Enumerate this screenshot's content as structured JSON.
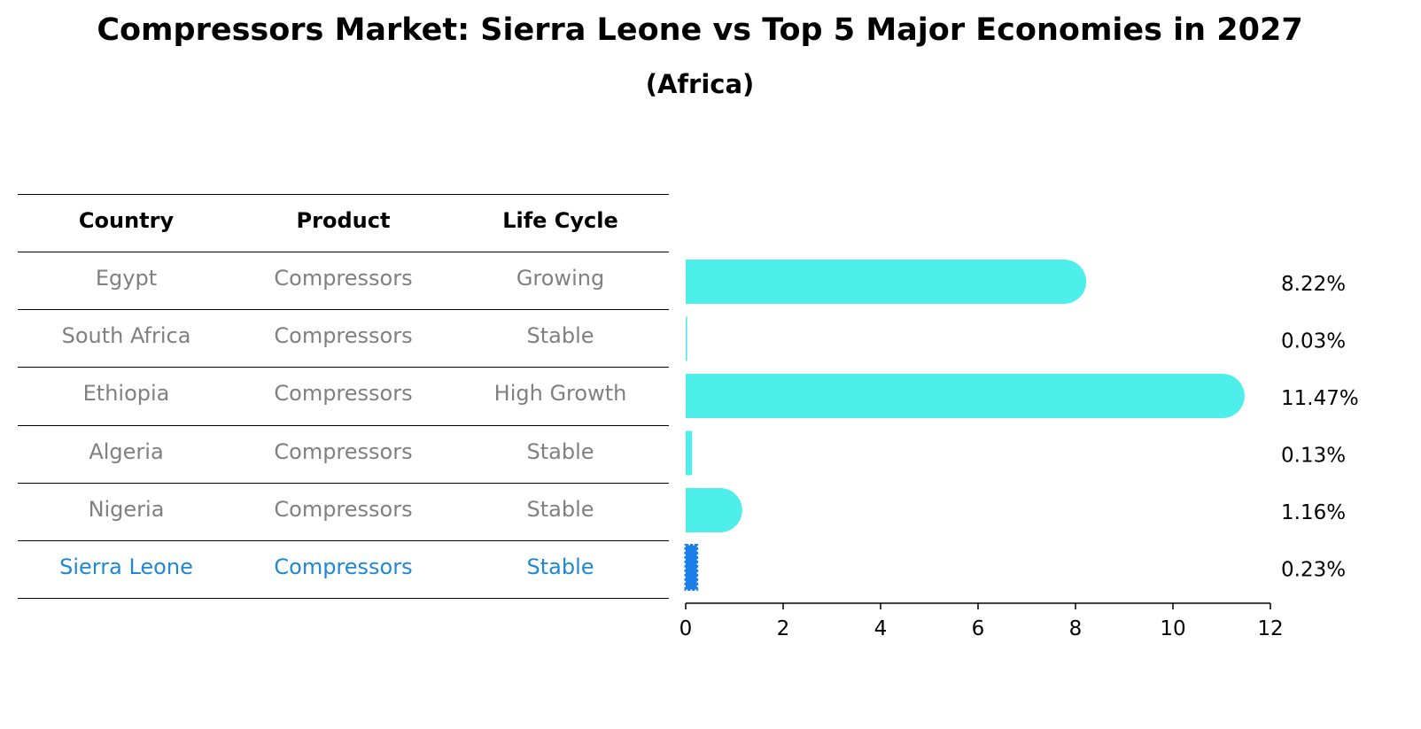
{
  "title": "Compressors Market: Sierra Leone vs Top 5 Major Economies in 2027",
  "subtitle": "(Africa)",
  "table": {
    "headers": [
      "Country",
      "Product",
      "Life Cycle"
    ],
    "rows": [
      {
        "country": "Egypt",
        "product": "Compressors",
        "life_cycle": "Growing"
      },
      {
        "country": "South Africa",
        "product": "Compressors",
        "life_cycle": "Stable"
      },
      {
        "country": "Ethiopia",
        "product": "Compressors",
        "life_cycle": "High Growth"
      },
      {
        "country": "Algeria",
        "product": "Compressors",
        "life_cycle": "Stable"
      },
      {
        "country": "Nigeria",
        "product": "Compressors",
        "life_cycle": "Stable"
      },
      {
        "country": "Sierra Leone",
        "product": "Compressors",
        "life_cycle": "Stable"
      }
    ]
  },
  "colors": {
    "bar": "#4eeeea",
    "highlight": "#1f87d6",
    "highlight_bar": "#1a7fe8",
    "muted_text": "#808080"
  },
  "chart_data": {
    "type": "bar",
    "orientation": "horizontal",
    "categories": [
      "Egypt",
      "South Africa",
      "Ethiopia",
      "Algeria",
      "Nigeria",
      "Sierra Leone"
    ],
    "values": [
      8.22,
      0.03,
      11.47,
      0.13,
      1.16,
      0.23
    ],
    "value_labels": [
      "8.22%",
      "0.03%",
      "11.47%",
      "0.13%",
      "1.16%",
      "0.23%"
    ],
    "highlight": "Sierra Leone",
    "xlim": [
      0,
      12
    ],
    "xticks": [
      0,
      2,
      4,
      6,
      8,
      10,
      12
    ],
    "grid": false
  }
}
